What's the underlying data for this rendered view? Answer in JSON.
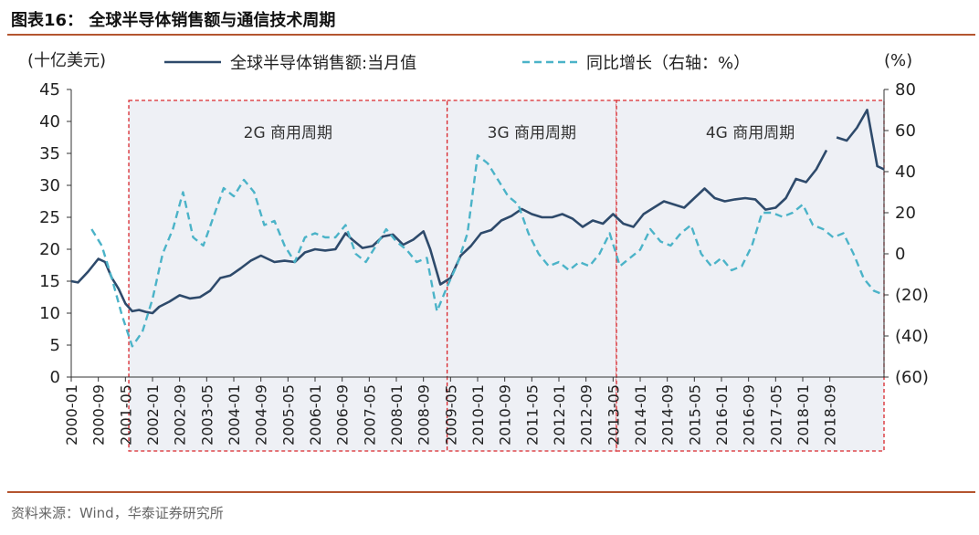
{
  "header": {
    "title": "图表16：  全球半导体销售额与通信技术周期"
  },
  "footer": {
    "source": "资料来源：Wind，华泰证券研究所"
  },
  "colors": {
    "accent_rule": "#b4552f",
    "sales_line": "#2e4a6b",
    "yoy_line": "#4bb3c8",
    "period_box": "#d9262b",
    "period_fill": "#eef0f5"
  },
  "chart_data": {
    "type": "line",
    "left_axis_unit": "(十亿美元)",
    "right_axis_unit": "(%)",
    "ylim": [
      0,
      45
    ],
    "y2lim": [
      -60,
      80
    ],
    "yticks": [
      "0",
      "5",
      "10",
      "15",
      "20",
      "25",
      "30",
      "35",
      "40",
      "45"
    ],
    "y2ticks": [
      "(60)",
      "(40)",
      "(20)",
      "0",
      "20",
      "40",
      "60",
      "80"
    ],
    "xticks": [
      "2000-01",
      "2000-09",
      "2001-05",
      "2002-01",
      "2002-09",
      "2003-05",
      "2004-01",
      "2004-09",
      "2005-05",
      "2006-01",
      "2006-09",
      "2007-05",
      "2008-01",
      "2008-09",
      "2009-05",
      "2010-01",
      "2010-09",
      "2011-05",
      "2012-01",
      "2012-09",
      "2013-05",
      "2014-01",
      "2014-09",
      "2015-05",
      "2016-01",
      "2016-09",
      "2017-05",
      "2018-01",
      "2018-09"
    ],
    "legend_placement": "top-center",
    "series": [
      {
        "name": "全球半导体销售额:当月值",
        "axis": "left",
        "style": "solid",
        "points": [
          [
            "2000-01",
            15.0
          ],
          [
            "2000-03",
            14.8
          ],
          [
            "2000-06",
            16.5
          ],
          [
            "2000-09",
            18.5
          ],
          [
            "2000-11",
            18.0
          ],
          [
            "2001-01",
            15.5
          ],
          [
            "2001-03",
            13.8
          ],
          [
            "2001-05",
            11.5
          ],
          [
            "2001-07",
            10.3
          ],
          [
            "2001-09",
            10.5
          ],
          [
            "2001-11",
            10.2
          ],
          [
            "2002-01",
            10.0
          ],
          [
            "2002-03",
            11.0
          ],
          [
            "2002-06",
            11.8
          ],
          [
            "2002-09",
            12.8
          ],
          [
            "2002-12",
            12.3
          ],
          [
            "2003-03",
            12.5
          ],
          [
            "2003-06",
            13.5
          ],
          [
            "2003-09",
            15.5
          ],
          [
            "2003-12",
            15.9
          ],
          [
            "2004-03",
            17.0
          ],
          [
            "2004-06",
            18.2
          ],
          [
            "2004-09",
            19.0
          ],
          [
            "2004-11",
            18.5
          ],
          [
            "2005-01",
            18.0
          ],
          [
            "2005-04",
            18.2
          ],
          [
            "2005-07",
            18.0
          ],
          [
            "2005-10",
            19.5
          ],
          [
            "2006-01",
            20.0
          ],
          [
            "2006-04",
            19.8
          ],
          [
            "2006-07",
            20.0
          ],
          [
            "2006-10",
            22.5
          ],
          [
            "2006-12",
            21.5
          ],
          [
            "2007-03",
            20.2
          ],
          [
            "2007-06",
            20.5
          ],
          [
            "2007-09",
            22.0
          ],
          [
            "2007-12",
            22.3
          ],
          [
            "2008-03",
            20.7
          ],
          [
            "2008-06",
            21.5
          ],
          [
            "2008-09",
            22.8
          ],
          [
            "2008-11",
            20.0
          ],
          [
            "2009-02",
            14.5
          ],
          [
            "2009-05",
            15.5
          ],
          [
            "2009-08",
            19.0
          ],
          [
            "2009-11",
            20.5
          ],
          [
            "2010-02",
            22.5
          ],
          [
            "2010-05",
            23.0
          ],
          [
            "2010-08",
            24.5
          ],
          [
            "2010-11",
            25.2
          ],
          [
            "2011-02",
            26.3
          ],
          [
            "2011-05",
            25.5
          ],
          [
            "2011-08",
            25.0
          ],
          [
            "2011-11",
            25.0
          ],
          [
            "2012-02",
            25.5
          ],
          [
            "2012-05",
            24.8
          ],
          [
            "2012-08",
            23.5
          ],
          [
            "2012-11",
            24.5
          ],
          [
            "2013-02",
            24.0
          ],
          [
            "2013-05",
            25.5
          ],
          [
            "2013-08",
            24.0
          ],
          [
            "2013-11",
            23.5
          ],
          [
            "2014-02",
            25.5
          ],
          [
            "2014-05",
            26.5
          ],
          [
            "2014-08",
            27.5
          ],
          [
            "2014-11",
            27.0
          ],
          [
            "2015-02",
            26.5
          ],
          [
            "2015-05",
            28.0
          ],
          [
            "2015-08",
            29.5
          ],
          [
            "2015-11",
            28.0
          ],
          [
            "2016-02",
            27.5
          ],
          [
            "2016-05",
            27.8
          ],
          [
            "2016-08",
            28.0
          ],
          [
            "2016-11",
            27.8
          ],
          [
            "2017-02",
            26.2
          ],
          [
            "2017-05",
            26.5
          ],
          [
            "2017-08",
            28.0
          ],
          [
            "2017-11",
            31.0
          ],
          [
            "2018-02",
            30.5
          ],
          [
            "2018-05",
            32.5
          ],
          [
            "2018-08",
            35.5
          ],
          [
            null,
            null
          ],
          [
            "2018-11",
            37.5
          ],
          [
            "2019-02",
            37.0
          ],
          [
            "2019-05",
            39.0
          ],
          [
            "2019-08",
            41.8
          ],
          [
            "2019-11",
            33.0
          ],
          [
            "2020-01",
            32.5
          ]
        ]
      },
      {
        "name": "同比增长（右轴：%）",
        "axis": "right",
        "style": "dashed",
        "points": [
          [
            "2000-07",
            12
          ],
          [
            "2000-10",
            4
          ],
          [
            "2001-01",
            -12
          ],
          [
            "2001-04",
            -30
          ],
          [
            "2001-07",
            -45
          ],
          [
            "2001-10",
            -38
          ],
          [
            "2002-01",
            -22
          ],
          [
            "2002-04",
            0
          ],
          [
            "2002-07",
            12
          ],
          [
            "2002-10",
            30
          ],
          [
            "2003-01",
            8
          ],
          [
            "2003-04",
            4
          ],
          [
            "2003-07",
            18
          ],
          [
            "2003-10",
            32
          ],
          [
            "2004-01",
            28
          ],
          [
            "2004-04",
            36
          ],
          [
            "2004-07",
            30
          ],
          [
            "2004-10",
            14
          ],
          [
            "2005-01",
            16
          ],
          [
            "2005-04",
            4
          ],
          [
            "2005-07",
            -4
          ],
          [
            "2005-10",
            8
          ],
          [
            "2006-01",
            10
          ],
          [
            "2006-04",
            8
          ],
          [
            "2006-07",
            8
          ],
          [
            "2006-10",
            14
          ],
          [
            "2007-01",
            0
          ],
          [
            "2007-04",
            -4
          ],
          [
            "2007-07",
            4
          ],
          [
            "2007-10",
            12
          ],
          [
            "2008-01",
            6
          ],
          [
            "2008-04",
            2
          ],
          [
            "2008-07",
            -4
          ],
          [
            "2008-10",
            -2
          ],
          [
            "2009-01",
            -28
          ],
          [
            "2009-04",
            -16
          ],
          [
            "2009-07",
            -5
          ],
          [
            "2009-10",
            10
          ],
          [
            "2010-01",
            48
          ],
          [
            "2010-04",
            44
          ],
          [
            "2010-07",
            36
          ],
          [
            "2010-10",
            28
          ],
          [
            "2011-01",
            24
          ],
          [
            "2011-04",
            10
          ],
          [
            "2011-07",
            0
          ],
          [
            "2011-10",
            -6
          ],
          [
            "2012-01",
            -4
          ],
          [
            "2012-04",
            -8
          ],
          [
            "2012-07",
            -4
          ],
          [
            "2012-10",
            -6
          ],
          [
            "2013-01",
            0
          ],
          [
            "2013-04",
            10
          ],
          [
            "2013-07",
            -6
          ],
          [
            "2013-10",
            -2
          ],
          [
            "2014-01",
            2
          ],
          [
            "2014-04",
            12
          ],
          [
            "2014-07",
            6
          ],
          [
            "2014-10",
            4
          ],
          [
            "2015-01",
            10
          ],
          [
            "2015-04",
            14
          ],
          [
            "2015-07",
            0
          ],
          [
            "2015-10",
            -6
          ],
          [
            "2016-01",
            -2
          ],
          [
            "2016-04",
            -8
          ],
          [
            "2016-07",
            -6
          ],
          [
            "2016-10",
            4
          ],
          [
            "2017-01",
            20
          ],
          [
            "2017-04",
            20
          ],
          [
            "2017-07",
            18
          ],
          [
            "2017-10",
            20
          ],
          [
            "2018-01",
            24
          ],
          [
            "2018-04",
            14
          ],
          [
            "2018-07",
            12
          ],
          [
            "2018-10",
            8
          ],
          [
            "2019-01",
            10
          ],
          [
            "2019-04",
            0
          ],
          [
            "2019-07",
            -12
          ],
          [
            "2019-10",
            -18
          ],
          [
            "2020-01",
            -20
          ]
        ]
      }
    ],
    "periods": [
      {
        "label": "2G 商用周期",
        "start": "2001-06",
        "end": "2009-04"
      },
      {
        "label": "3G 商用周期",
        "start": "2009-04",
        "end": "2013-06"
      },
      {
        "label": "4G 商用周期",
        "start": "2013-06",
        "end": "2020-01"
      }
    ]
  }
}
